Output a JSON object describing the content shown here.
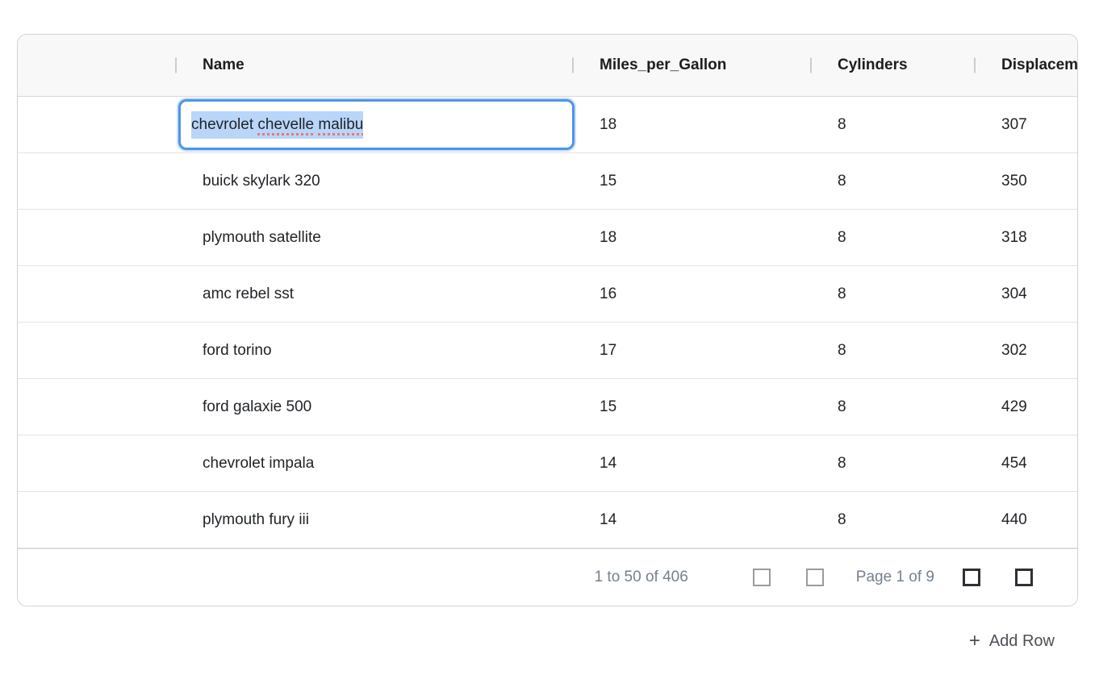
{
  "colors": {
    "accent": "#4e94e8",
    "selection": "#b9d6f9",
    "spellcheck": "#e87878",
    "muted": "#75808f",
    "header-bg": "#f8f8f8",
    "border-row": "#e3e3e3",
    "pager-disabled": "#9b9b9b",
    "pager-enabled": "#2d3034"
  },
  "grid": {
    "columns": [
      {
        "label": ""
      },
      {
        "label": "Name"
      },
      {
        "label": "Miles_per_Gallon"
      },
      {
        "label": "Cylinders"
      },
      {
        "label": "Displacement"
      }
    ],
    "rows": [
      {
        "name": "chevrolet chevelle malibu",
        "mpg": 18,
        "cylinders": 8,
        "displacement": 307
      },
      {
        "name": "buick skylark 320",
        "mpg": 15,
        "cylinders": 8,
        "displacement": 350
      },
      {
        "name": "plymouth satellite",
        "mpg": 18,
        "cylinders": 8,
        "displacement": 318
      },
      {
        "name": "amc rebel sst",
        "mpg": 16,
        "cylinders": 8,
        "displacement": 304
      },
      {
        "name": "ford torino",
        "mpg": 17,
        "cylinders": 8,
        "displacement": 302
      },
      {
        "name": "ford galaxie 500",
        "mpg": 15,
        "cylinders": 8,
        "displacement": 429
      },
      {
        "name": "chevrolet impala",
        "mpg": 14,
        "cylinders": 8,
        "displacement": 454
      },
      {
        "name": "plymouth fury iii",
        "mpg": 14,
        "cylinders": 8,
        "displacement": 440
      }
    ],
    "footer": {
      "range_summary": "1 to 50 of 406",
      "page_label": "Page 1 of 9"
    }
  },
  "edit_cell": {
    "full_value": "chevrolet chevelle malibu",
    "part1": "chevrolet ",
    "part2": "chevelle",
    "part3": " ",
    "part4": "malibu"
  },
  "add_row": {
    "icon": "+",
    "label": "Add Row"
  }
}
